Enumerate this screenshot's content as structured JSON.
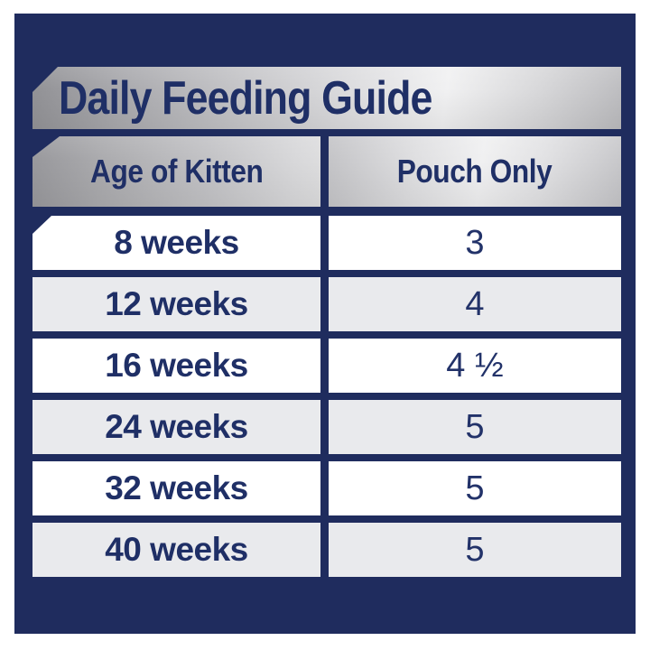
{
  "title": "Daily Feeding Guide",
  "columns": {
    "age": "Age of Kitten",
    "pouch": "Pouch Only"
  },
  "rows": [
    {
      "age": "8 weeks",
      "pouch": "3"
    },
    {
      "age": "12 weeks",
      "pouch": "4"
    },
    {
      "age": "16 weeks",
      "pouch": "4 ½"
    },
    {
      "age": "24 weeks",
      "pouch": "5"
    },
    {
      "age": "32 weeks",
      "pouch": "5"
    },
    {
      "age": "40 weeks",
      "pouch": "5"
    }
  ],
  "chart_data": {
    "type": "table",
    "title": "Daily Feeding Guide",
    "columns": [
      "Age of Kitten",
      "Pouch Only"
    ],
    "rows": [
      [
        "8 weeks",
        "3"
      ],
      [
        "12 weeks",
        "4"
      ],
      [
        "16 weeks",
        "4 ½"
      ],
      [
        "24 weeks",
        "5"
      ],
      [
        "32 weeks",
        "5"
      ],
      [
        "40 weeks",
        "5"
      ]
    ]
  },
  "colors": {
    "panel_navy": "#1f2c5e",
    "text_navy": "#1f2f66",
    "row_alt_gray": "#e9eaed",
    "row_white": "#ffffff",
    "silver_light": "#f1f1f2",
    "silver_dark": "#97979b",
    "outer_margin": "#ffffff"
  }
}
